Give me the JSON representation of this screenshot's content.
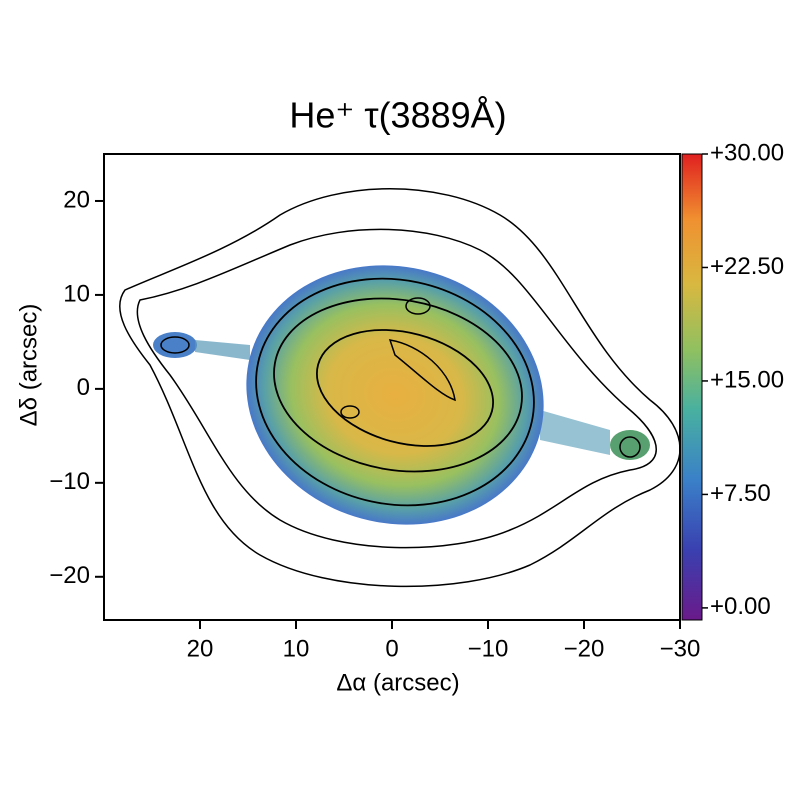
{
  "chart_data": {
    "type": "image",
    "title": "He⁺ τ(3889Å)",
    "x_label": "Δα (arcsec)",
    "y_label": "Δδ (arcsec)",
    "xlim": [
      30,
      -30
    ],
    "ylim": [
      -24.6,
      25.0
    ],
    "xticks": [
      20,
      10,
      0,
      {
        "value": -10,
        "label": "−10"
      },
      {
        "value": -20,
        "label": "−20"
      },
      {
        "value": -30,
        "label": "−30"
      }
    ],
    "yticks": [
      20,
      10,
      0,
      {
        "value": -10,
        "label": "−10"
      },
      {
        "value": -20,
        "label": "−20"
      }
    ],
    "clim": [
      -0.8,
      30.0
    ],
    "cticks": [
      {
        "value": 30,
        "label": "+30.00"
      },
      {
        "value": 22.5,
        "label": "+22.50"
      },
      {
        "value": 15,
        "label": "+15.00"
      },
      {
        "value": 7.5,
        "label": "+7.50"
      },
      {
        "value": 0,
        "label": "+0.00"
      }
    ]
  }
}
